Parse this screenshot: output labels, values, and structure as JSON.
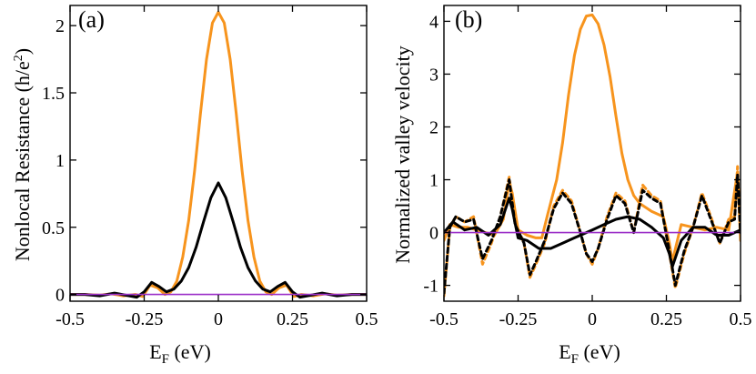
{
  "chart_data": [
    {
      "type": "line",
      "panel_label": "(a)",
      "xlabel_main": "E",
      "xlabel_sub": "F",
      "xlabel_tail": " (eV)",
      "ylabel_main": "Nonlocal Resistance (h/e",
      "ylabel_sup": "2",
      "ylabel_tail": ")",
      "xlim": [
        -0.5,
        0.5
      ],
      "ylim": [
        -0.05,
        2.15
      ],
      "xticks": [
        -0.5,
        -0.25,
        0,
        0.25,
        0.5
      ],
      "xtick_labels": [
        "-0.5",
        "-0.25",
        "0",
        "0.25",
        "0.5"
      ],
      "yticks": [
        0,
        0.5,
        1,
        1.5,
        2
      ],
      "ytick_labels": [
        "0",
        "0.5",
        "1",
        "1.5",
        "2"
      ],
      "series": [
        {
          "name": "orange",
          "color": "#f7941d",
          "dash": false,
          "x": [
            -0.5,
            -0.45,
            -0.4,
            -0.36,
            -0.32,
            -0.28,
            -0.255,
            -0.23,
            -0.205,
            -0.18,
            -0.16,
            -0.14,
            -0.12,
            -0.1,
            -0.08,
            -0.06,
            -0.04,
            -0.02,
            0,
            0.02,
            0.04,
            0.06,
            0.08,
            0.1,
            0.12,
            0.14,
            0.16,
            0.18,
            0.205,
            0.23,
            0.255,
            0.28,
            0.32,
            0.36,
            0.4,
            0.45,
            0.5
          ],
          "y": [
            0.0,
            0.0,
            -0.005,
            0.005,
            -0.01,
            0.0,
            -0.015,
            0.07,
            0.05,
            0.0,
            0.02,
            0.1,
            0.28,
            0.55,
            0.92,
            1.35,
            1.75,
            2.02,
            2.1,
            2.02,
            1.75,
            1.35,
            0.92,
            0.55,
            0.28,
            0.1,
            0.02,
            0.0,
            0.05,
            0.07,
            -0.015,
            0.0,
            -0.01,
            0.005,
            -0.005,
            0.0,
            0.0
          ]
        },
        {
          "name": "black",
          "color": "#000000",
          "dash": false,
          "x": [
            -0.5,
            -0.45,
            -0.4,
            -0.35,
            -0.3,
            -0.275,
            -0.25,
            -0.225,
            -0.2,
            -0.175,
            -0.15,
            -0.125,
            -0.1,
            -0.075,
            -0.05,
            -0.025,
            0,
            0.025,
            0.05,
            0.075,
            0.1,
            0.125,
            0.15,
            0.175,
            0.2,
            0.225,
            0.25,
            0.275,
            0.3,
            0.35,
            0.4,
            0.45,
            0.5
          ],
          "y": [
            0.0,
            0.0,
            -0.01,
            0.01,
            -0.01,
            -0.02,
            0.02,
            0.09,
            0.06,
            0.02,
            0.04,
            0.1,
            0.2,
            0.35,
            0.54,
            0.72,
            0.83,
            0.72,
            0.54,
            0.35,
            0.2,
            0.1,
            0.04,
            0.02,
            0.06,
            0.09,
            0.02,
            -0.02,
            -0.01,
            0.01,
            -0.01,
            0.0,
            0.0
          ]
        },
        {
          "name": "zero-line",
          "color": "#9b30c8",
          "dash": false,
          "x": [
            -0.5,
            0.5
          ],
          "y": [
            0,
            0
          ]
        }
      ]
    },
    {
      "type": "line",
      "panel_label": "(b)",
      "xlabel_main": "E",
      "xlabel_sub": "F",
      "xlabel_tail": " (eV)",
      "ylabel_main": "Normalized valley velocity",
      "xlim": [
        -0.5,
        0.5
      ],
      "ylim": [
        -1.3,
        4.3
      ],
      "xticks": [
        -0.5,
        -0.25,
        0,
        0.25,
        0.5
      ],
      "xtick_labels": [
        "-0.5",
        "-0.25",
        "0",
        "0.25",
        "0.5"
      ],
      "yticks": [
        -1,
        0,
        1,
        2,
        3,
        4
      ],
      "ytick_labels": [
        "-1",
        "0",
        "1",
        "2",
        "3",
        "4"
      ],
      "series": [
        {
          "name": "orange-solid",
          "color": "#f7941d",
          "dash": false,
          "x": [
            -0.5,
            -0.48,
            -0.45,
            -0.42,
            -0.39,
            -0.36,
            -0.33,
            -0.3,
            -0.28,
            -0.27,
            -0.25,
            -0.22,
            -0.19,
            -0.17,
            -0.15,
            -0.12,
            -0.1,
            -0.08,
            -0.06,
            -0.04,
            -0.02,
            0,
            0.02,
            0.04,
            0.06,
            0.08,
            0.1,
            0.12,
            0.14,
            0.16,
            0.2,
            0.24,
            0.26,
            0.27,
            0.3,
            0.34,
            0.38,
            0.42,
            0.46,
            0.49,
            0.5
          ],
          "y": [
            -0.15,
            0.15,
            0.1,
            0.1,
            0.05,
            0.0,
            -0.05,
            0.25,
            0.95,
            0.75,
            0.05,
            -0.05,
            -0.1,
            -0.1,
            0.35,
            1.0,
            1.7,
            2.6,
            3.35,
            3.85,
            4.1,
            4.12,
            3.95,
            3.55,
            2.95,
            2.2,
            1.5,
            1.0,
            0.7,
            0.55,
            0.4,
            0.3,
            -0.2,
            -0.55,
            0.15,
            0.1,
            0.05,
            0.1,
            0.05,
            1.15,
            -0.15
          ]
        },
        {
          "name": "orange-dashed",
          "color": "#f7941d",
          "dash": true,
          "x": [
            -0.5,
            -0.48,
            -0.46,
            -0.43,
            -0.4,
            -0.37,
            -0.34,
            -0.31,
            -0.28,
            -0.26,
            -0.23,
            -0.21,
            -0.19,
            -0.16,
            -0.13,
            -0.1,
            -0.07,
            -0.04,
            -0.02,
            0,
            0.02,
            0.05,
            0.08,
            0.11,
            0.14,
            0.17,
            0.2,
            0.23,
            0.26,
            0.28,
            0.31,
            0.34,
            0.37,
            0.4,
            0.43,
            0.46,
            0.48,
            0.49,
            0.5
          ],
          "y": [
            -1.2,
            0.1,
            0.3,
            0.2,
            0.3,
            -0.6,
            -0.2,
            0.3,
            1.05,
            0.2,
            -0.2,
            -0.85,
            -0.6,
            -0.2,
            0.5,
            0.8,
            0.6,
            0.0,
            -0.4,
            -0.6,
            -0.3,
            0.3,
            0.75,
            0.6,
            0.0,
            0.9,
            0.7,
            0.6,
            -0.4,
            -1.05,
            -0.4,
            0.1,
            0.75,
            0.3,
            -0.2,
            0.25,
            0.3,
            1.25,
            0.0
          ]
        },
        {
          "name": "black-dashed",
          "color": "#000000",
          "dash": true,
          "x": [
            -0.5,
            -0.48,
            -0.46,
            -0.43,
            -0.4,
            -0.37,
            -0.34,
            -0.31,
            -0.28,
            -0.26,
            -0.23,
            -0.21,
            -0.19,
            -0.16,
            -0.13,
            -0.1,
            -0.07,
            -0.04,
            -0.02,
            0,
            0.02,
            0.05,
            0.08,
            0.11,
            0.14,
            0.17,
            0.2,
            0.23,
            0.26,
            0.28,
            0.31,
            0.34,
            0.37,
            0.4,
            0.43,
            0.46,
            0.48,
            0.49,
            0.5
          ],
          "y": [
            -1.15,
            0.1,
            0.3,
            0.2,
            0.25,
            -0.5,
            -0.15,
            0.3,
            1.0,
            0.15,
            -0.2,
            -0.8,
            -0.55,
            -0.15,
            0.45,
            0.75,
            0.55,
            0.0,
            -0.4,
            -0.55,
            -0.3,
            0.25,
            0.7,
            0.55,
            0.0,
            0.8,
            0.65,
            0.55,
            -0.35,
            -1.0,
            -0.35,
            0.1,
            0.7,
            0.25,
            -0.2,
            0.2,
            0.25,
            1.1,
            0.0
          ]
        },
        {
          "name": "black-solid",
          "color": "#000000",
          "dash": false,
          "x": [
            -0.5,
            -0.47,
            -0.43,
            -0.39,
            -0.35,
            -0.31,
            -0.28,
            -0.27,
            -0.25,
            -0.22,
            -0.18,
            -0.14,
            -0.1,
            -0.06,
            -0.02,
            0,
            0.04,
            0.08,
            0.12,
            0.16,
            0.2,
            0.24,
            0.26,
            0.27,
            0.3,
            0.34,
            0.38,
            0.42,
            0.46,
            0.5
          ],
          "y": [
            0.0,
            0.2,
            0.05,
            0.1,
            -0.05,
            0.15,
            0.65,
            0.45,
            -0.1,
            -0.15,
            -0.3,
            -0.3,
            -0.2,
            -0.1,
            0.0,
            0.05,
            0.15,
            0.25,
            0.3,
            0.25,
            0.1,
            -0.1,
            -0.4,
            -0.65,
            -0.15,
            0.1,
            0.1,
            -0.05,
            -0.05,
            0.05
          ]
        },
        {
          "name": "zero-line",
          "color": "#9b30c8",
          "dash": false,
          "x": [
            -0.5,
            0.5
          ],
          "y": [
            0,
            0
          ]
        }
      ]
    }
  ]
}
